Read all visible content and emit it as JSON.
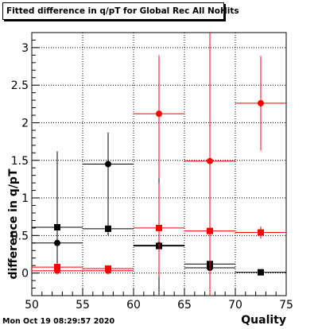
{
  "chart_data": {
    "type": "scatter",
    "title": "Fitted difference in q/pT for Global Rec All NoHits",
    "xlabel": "Quality",
    "ylabel": "difference in q/pT",
    "xlim": [
      50,
      75
    ],
    "ylim": [
      -0.3,
      3.2
    ],
    "x_ticks": [
      "50",
      "55",
      "60",
      "65",
      "70",
      "75"
    ],
    "y_ticks": [
      "0",
      "0.5",
      "1",
      "1.5",
      "2",
      "2.5",
      "3"
    ],
    "grid": true,
    "series": [
      {
        "name": "",
        "color": "#000000",
        "marker": "circle",
        "points": [
          {
            "x": 52.5,
            "y": 0.4,
            "ex": 2.5,
            "eylo": 0.3,
            "eyhi": 1.22
          },
          {
            "x": 57.5,
            "y": 1.45,
            "ex": 2.5,
            "eylo": 0.95,
            "eyhi": 0.42
          },
          {
            "x": 62.5,
            "y": 0.37,
            "ex": 2.5,
            "eylo": 0.4,
            "eyhi": 0.4
          },
          {
            "x": 67.5,
            "y": 0.07,
            "ex": 2.5,
            "eylo": 0.05,
            "eyhi": 0.05
          }
        ]
      },
      {
        "name": "",
        "color": "#000000",
        "marker": "square",
        "points": [
          {
            "x": 52.5,
            "y": 0.61,
            "ex": 2.5,
            "eylo": 0.05,
            "eyhi": 0.05
          },
          {
            "x": 57.5,
            "y": 0.59,
            "ex": 2.5,
            "eylo": 0.04,
            "eyhi": 0.04
          },
          {
            "x": 62.5,
            "y": 0.36,
            "ex": 2.5,
            "eylo": 0.65,
            "eyhi": 1.4
          },
          {
            "x": 67.5,
            "y": 0.12,
            "ex": 2.5,
            "eylo": 0.05,
            "eyhi": 0.05
          },
          {
            "x": 72.5,
            "y": 0.01,
            "ex": 2.5,
            "eylo": 0.01,
            "eyhi": 0.01
          }
        ]
      },
      {
        "name": "",
        "color": "#ff0000",
        "marker": "circle",
        "points": [
          {
            "x": 52.5,
            "y": 0.03,
            "ex": 2.5,
            "eylo": 0.02,
            "eyhi": 0.02
          },
          {
            "x": 57.5,
            "y": 0.03,
            "ex": 2.5,
            "eylo": 0.02,
            "eyhi": 0.02
          },
          {
            "x": 62.5,
            "y": 2.12,
            "ex": 2.5,
            "eylo": 0.85,
            "eyhi": 0.78
          },
          {
            "x": 67.5,
            "y": 1.49,
            "ex": 2.5,
            "eylo": 1.79,
            "eyhi": 1.71
          },
          {
            "x": 72.5,
            "y": 2.26,
            "ex": 2.5,
            "eylo": 0.63,
            "eyhi": 0.63
          }
        ]
      },
      {
        "name": "",
        "color": "#ff0000",
        "marker": "square",
        "points": [
          {
            "x": 52.5,
            "y": 0.08,
            "ex": 2.5,
            "eylo": 0.05,
            "eyhi": 0.05
          },
          {
            "x": 57.5,
            "y": 0.06,
            "ex": 2.5,
            "eylo": 0.03,
            "eyhi": 0.03
          },
          {
            "x": 62.5,
            "y": 0.6,
            "ex": 2.5,
            "eylo": 0.65,
            "eyhi": 0.6
          },
          {
            "x": 67.5,
            "y": 0.56,
            "ex": 2.5,
            "eylo": 0.05,
            "eyhi": 0.05
          },
          {
            "x": 72.5,
            "y": 0.54,
            "ex": 2.5,
            "eylo": 0.08,
            "eyhi": 0.08
          }
        ]
      }
    ]
  },
  "timestamp": "Mon Oct 19 08:29:57 2020"
}
